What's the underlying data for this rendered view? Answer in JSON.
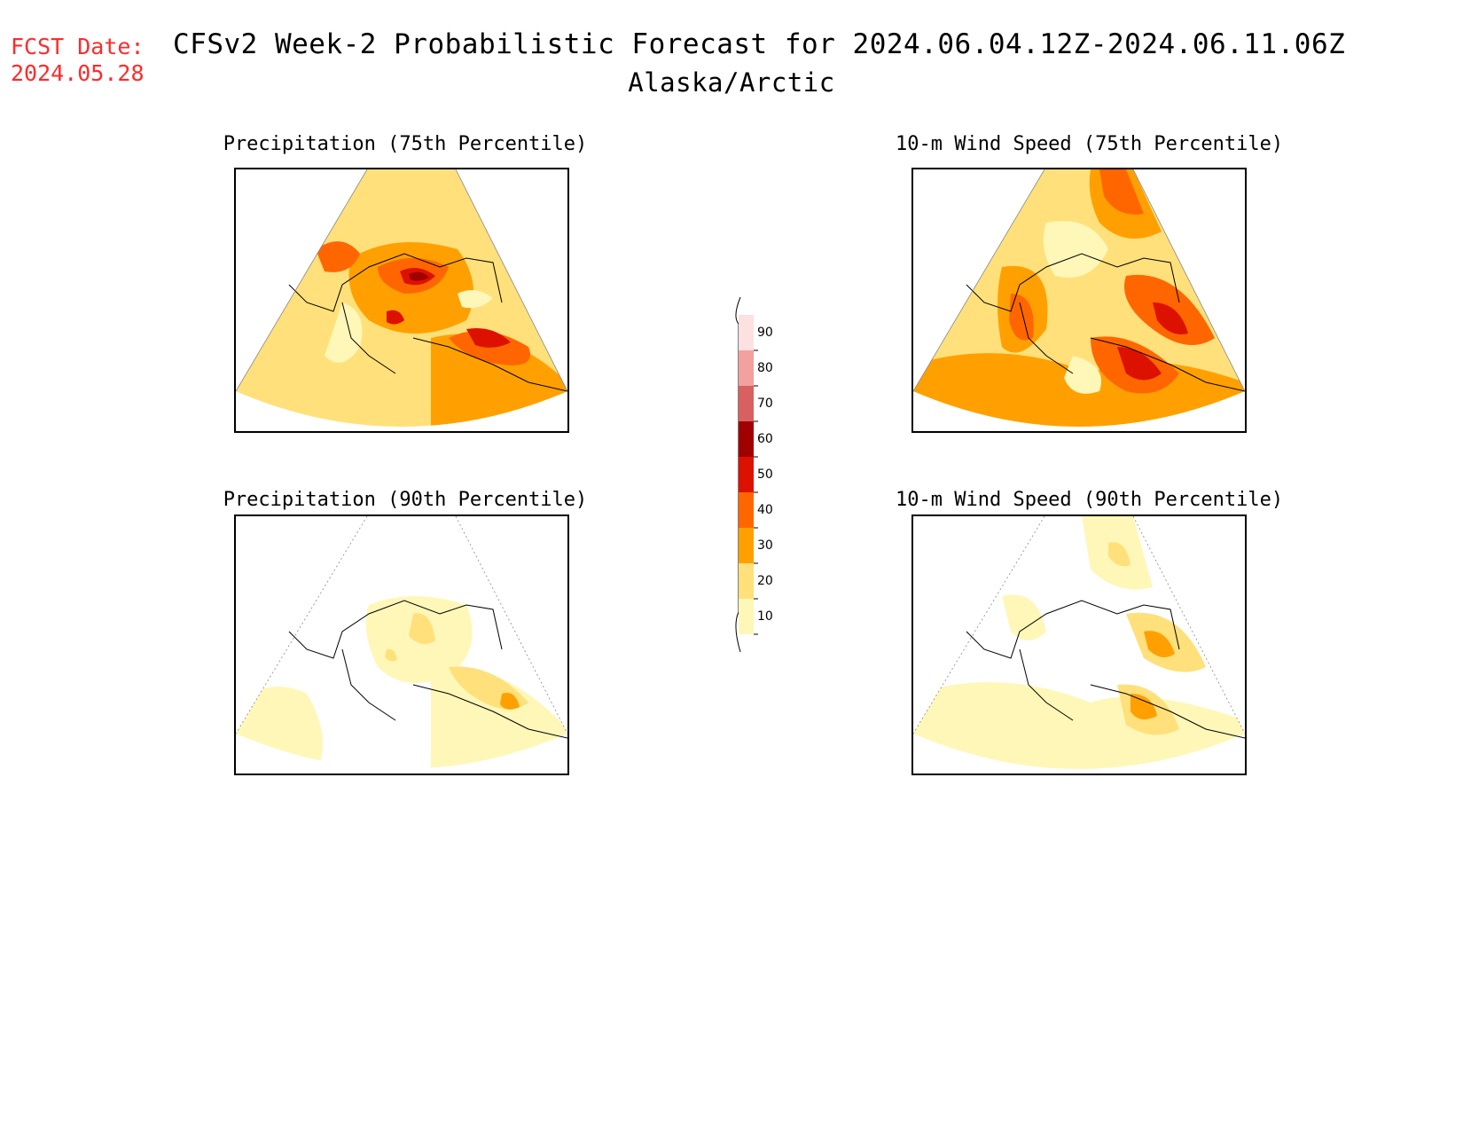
{
  "header": {
    "fcst_label": "FCST Date:",
    "fcst_date": "2024.05.28",
    "title": "CFSv2 Week-2 Probabilistic Forecast for 2024.06.04.12Z-2024.06.11.06Z",
    "subtitle": "Alaska/Arctic"
  },
  "panels": [
    {
      "title": "Precipitation (75th Percentile)",
      "intensity": "high",
      "variable": "precip"
    },
    {
      "title": "10-m Wind Speed (75th Percentile)",
      "intensity": "high",
      "variable": "wind"
    },
    {
      "title": "Precipitation (90th Percentile)",
      "intensity": "low",
      "variable": "precip"
    },
    {
      "title": "10-m Wind Speed (90th Percentile)",
      "intensity": "low",
      "variable": "wind"
    }
  ],
  "colorbar": {
    "labels": [
      "90",
      "80",
      "70",
      "60",
      "50",
      "40",
      "30",
      "20",
      "10"
    ],
    "colors": [
      "#fde0e0",
      "#f2a0a0",
      "#d86060",
      "#a00000",
      "#dd1100",
      "#ff6600",
      "#ffa000",
      "#ffe07a",
      "#fff7b8"
    ]
  }
}
